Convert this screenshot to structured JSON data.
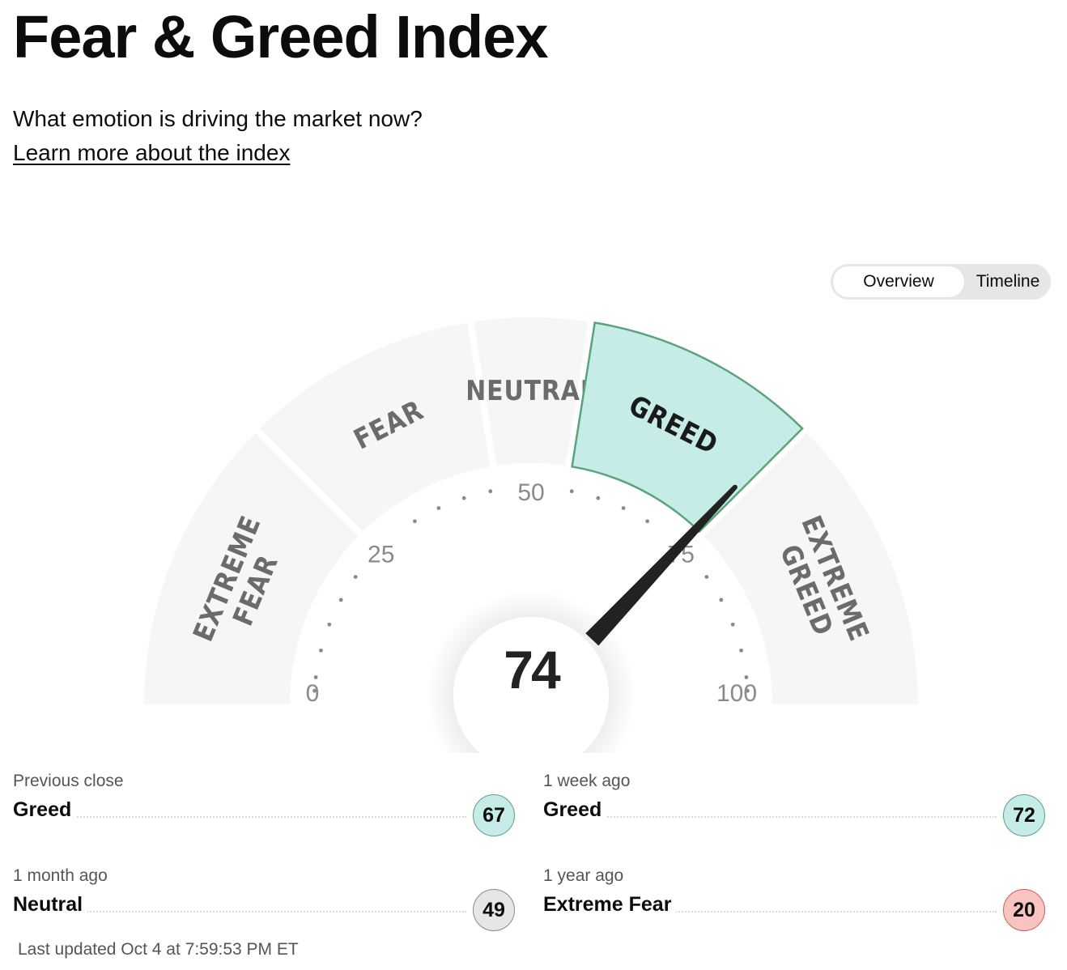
{
  "header": {
    "title": "Fear & Greed Index",
    "subtitle": "What emotion is driving the market now?",
    "learn_more": "Learn more about the index"
  },
  "view_toggle": {
    "options": [
      "Overview",
      "Timeline"
    ],
    "selected": "Overview"
  },
  "gauge": {
    "value": 74,
    "value_label": "74",
    "active_zone": "GREED",
    "zones": [
      {
        "lines": [
          "EXTREME",
          "FEAR"
        ],
        "range": [
          0,
          25
        ]
      },
      {
        "lines": [
          "FEAR"
        ],
        "range": [
          25,
          45
        ]
      },
      {
        "lines": [
          "NEUTRAL"
        ],
        "range": [
          45,
          55
        ]
      },
      {
        "lines": [
          "GREED"
        ],
        "range": [
          55,
          75
        ]
      },
      {
        "lines": [
          "EXTREME",
          "GREED"
        ],
        "range": [
          75,
          100
        ]
      }
    ],
    "ticks": [
      "0",
      "25",
      "50",
      "75",
      "100"
    ],
    "colors": {
      "zone_fill": "#f6f6f6",
      "active_fill": "#c5ece6",
      "active_stroke": "#5aa37a",
      "needle": "#222222",
      "zone_text": "#6b6b6b",
      "tick_text": "#8a8a8a"
    }
  },
  "history": [
    {
      "label": "Previous close",
      "rating": "Greed",
      "value": "67",
      "tone": "greed"
    },
    {
      "label": "1 week ago",
      "rating": "Greed",
      "value": "72",
      "tone": "greed"
    },
    {
      "label": "1 month ago",
      "rating": "Neutral",
      "value": "49",
      "tone": "neutral"
    },
    {
      "label": "1 year ago",
      "rating": "Extreme Fear",
      "value": "20",
      "tone": "xfear"
    }
  ],
  "last_updated": "Last updated Oct 4 at 7:59:53 PM ET"
}
